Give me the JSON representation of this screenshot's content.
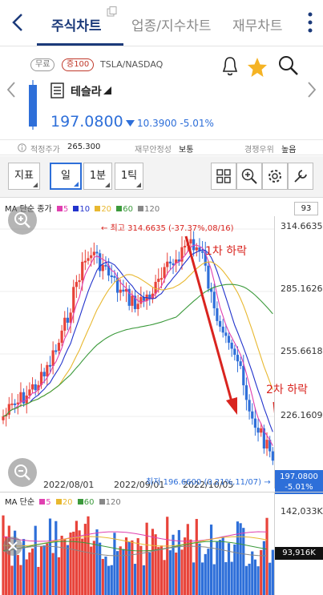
{
  "tabs": [
    "주식차트",
    "업종/지수차트",
    "재무차트"
  ],
  "header": {
    "badge_free": "무료",
    "badge_margin": "증100",
    "ticker": "TSLA/NASDAQ",
    "stock_name": "테슬라",
    "price": "197.0800",
    "change": "10.3900",
    "change_pct": "-5.01%"
  },
  "info": {
    "fair_price_label": "적정주가",
    "fair_price": "265.300",
    "financial_label": "재무안정성",
    "financial": "보통",
    "competitive_label": "경쟁우위",
    "competitive": "높음"
  },
  "toolbar": {
    "indicator": "지표",
    "period_day": "일",
    "period_min": "1분",
    "period_tick": "1틱"
  },
  "legend": {
    "prefix": "MA 단순 종가",
    "ma": [
      "5",
      "10",
      "20",
      "60",
      "120"
    ],
    "box": "93"
  },
  "axis": {
    "y": [
      "314.6635",
      "285.1626",
      "255.6618",
      "226.1609"
    ],
    "x": [
      "2022/08/01",
      "2022/09/01",
      "2022/10/05"
    ]
  },
  "labels": {
    "high": "← 최고 314.6635 (-37.37%,08/16)",
    "low": "최저 196.6600 (0.21%,11/07) →",
    "drop1": "1차 하락",
    "drop2": "2차 하락",
    "last_price": "197.0800",
    "last_pct": "-5.01%"
  },
  "volume": {
    "prefix": "MA 단순",
    "ma": [
      "5",
      "20",
      "60",
      "120"
    ],
    "max": "142,033K",
    "last": "93,916K"
  },
  "colors": {
    "up": "#e8433a",
    "down": "#2e6fd9",
    "ma5": "#e040b0",
    "ma10": "#2233cc",
    "ma20": "#e8b830",
    "ma60": "#3c9a3c",
    "ma120": "#888888",
    "annotation": "#d9241f"
  }
}
